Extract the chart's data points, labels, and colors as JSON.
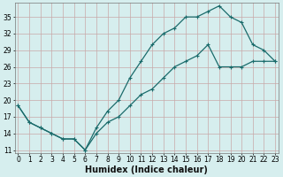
{
  "xlabel": "Humidex (Indice chaleur)",
  "ylabel": "",
  "bg_color": "#d6eeee",
  "grid_color": "#c8a8a8",
  "line_color": "#1a6b6b",
  "line1_x": [
    0,
    1,
    2,
    3,
    4,
    5,
    6,
    7,
    8,
    9,
    10,
    11,
    12,
    13,
    14,
    15,
    16,
    17,
    18,
    19,
    20,
    21,
    22,
    23
  ],
  "line1_y": [
    19,
    16,
    15,
    14,
    13,
    13,
    11,
    15,
    18,
    20,
    24,
    27,
    30,
    32,
    33,
    35,
    35,
    36,
    37,
    35,
    34,
    30,
    29,
    27
  ],
  "line2_x": [
    0,
    1,
    2,
    3,
    4,
    5,
    6,
    7,
    8,
    9,
    10,
    11,
    12,
    13,
    14,
    15,
    16,
    17,
    18,
    19,
    20,
    21,
    22,
    23
  ],
  "line2_y": [
    19,
    16,
    15,
    14,
    13,
    13,
    11,
    14,
    16,
    17,
    19,
    21,
    22,
    24,
    26,
    27,
    28,
    30,
    26,
    26,
    26,
    27,
    27,
    27
  ],
  "xlim": [
    -0.3,
    23.3
  ],
  "ylim": [
    10.5,
    37.5
  ],
  "yticks": [
    11,
    14,
    17,
    20,
    23,
    26,
    29,
    32,
    35
  ],
  "xticks": [
    0,
    1,
    2,
    3,
    4,
    5,
    6,
    7,
    8,
    9,
    10,
    11,
    12,
    13,
    14,
    15,
    16,
    17,
    18,
    19,
    20,
    21,
    22,
    23
  ],
  "xlabel_fontsize": 7,
  "tick_fontsize": 5.5,
  "marker_size": 3,
  "linewidth": 0.9
}
